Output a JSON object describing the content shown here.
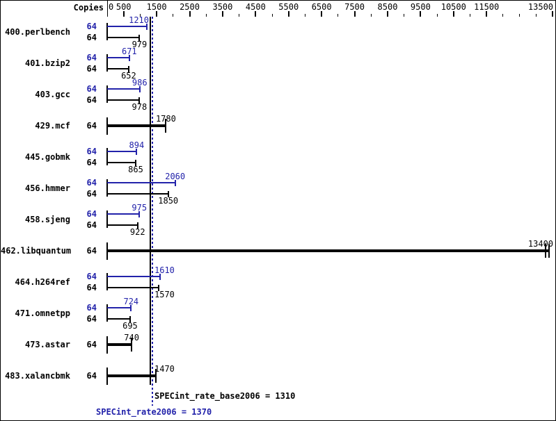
{
  "header": {
    "copies_label": "Copies"
  },
  "colors": {
    "peak_blue": "#2222aa",
    "base_black": "#000000",
    "background": "#ffffff"
  },
  "legend": {
    "base_text": "SPECint_rate_base2006 = 1310",
    "peak_text": "SPECint_rate2006 = 1370",
    "base_value": 1310,
    "peak_value": 1370
  },
  "chart_data": {
    "type": "bar",
    "orientation": "horizontal",
    "title": "",
    "xlabel": "",
    "ylabel": "Copies",
    "x_axis": {
      "min": 0,
      "max": 13500,
      "labels": [
        0,
        500,
        1500,
        2500,
        3500,
        4500,
        5500,
        6500,
        7500,
        8500,
        9500,
        10500,
        11500,
        13500
      ],
      "major_ticks": [
        500,
        1500,
        2500,
        3500,
        4500,
        5500,
        6500,
        7500,
        8500,
        9500,
        10500,
        11500,
        13500
      ],
      "minor_ticks": [
        1000,
        2000,
        3000,
        4000,
        5000,
        6000,
        7000,
        8000,
        9000,
        10000,
        11000,
        12000,
        12500,
        13000
      ]
    },
    "reference_lines": [
      {
        "name": "base",
        "value": 1310,
        "style": "solid",
        "color": "#000000"
      },
      {
        "name": "peak",
        "value": 1370,
        "style": "dotted",
        "color": "#2222aa"
      }
    ],
    "benchmarks": [
      {
        "name": "400.perlbench",
        "copies": 64,
        "peak": 1210,
        "base": 979,
        "merged": false
      },
      {
        "name": "401.bzip2",
        "copies": 64,
        "peak": 671,
        "base": 652,
        "merged": false
      },
      {
        "name": "403.gcc",
        "copies": 64,
        "peak": 986,
        "base": 978,
        "merged": false
      },
      {
        "name": "429.mcf",
        "copies": 64,
        "peak": 1780,
        "base": 1780,
        "merged": true
      },
      {
        "name": "445.gobmk",
        "copies": 64,
        "peak": 894,
        "base": 865,
        "merged": false
      },
      {
        "name": "456.hmmer",
        "copies": 64,
        "peak": 2060,
        "base": 1850,
        "merged": false
      },
      {
        "name": "458.sjeng",
        "copies": 64,
        "peak": 975,
        "base": 922,
        "merged": false
      },
      {
        "name": "462.libquantum",
        "copies": 64,
        "peak": 13400,
        "base": 13400,
        "merged": true
      },
      {
        "name": "464.h264ref",
        "copies": 64,
        "peak": 1610,
        "base": 1570,
        "merged": false
      },
      {
        "name": "471.omnetpp",
        "copies": 64,
        "peak": 724,
        "base": 695,
        "merged": false
      },
      {
        "name": "473.astar",
        "copies": 64,
        "peak": 740,
        "base": 740,
        "merged": true
      },
      {
        "name": "483.xalancbmk",
        "copies": 64,
        "peak": 1470,
        "base": 1470,
        "merged": true
      }
    ]
  }
}
